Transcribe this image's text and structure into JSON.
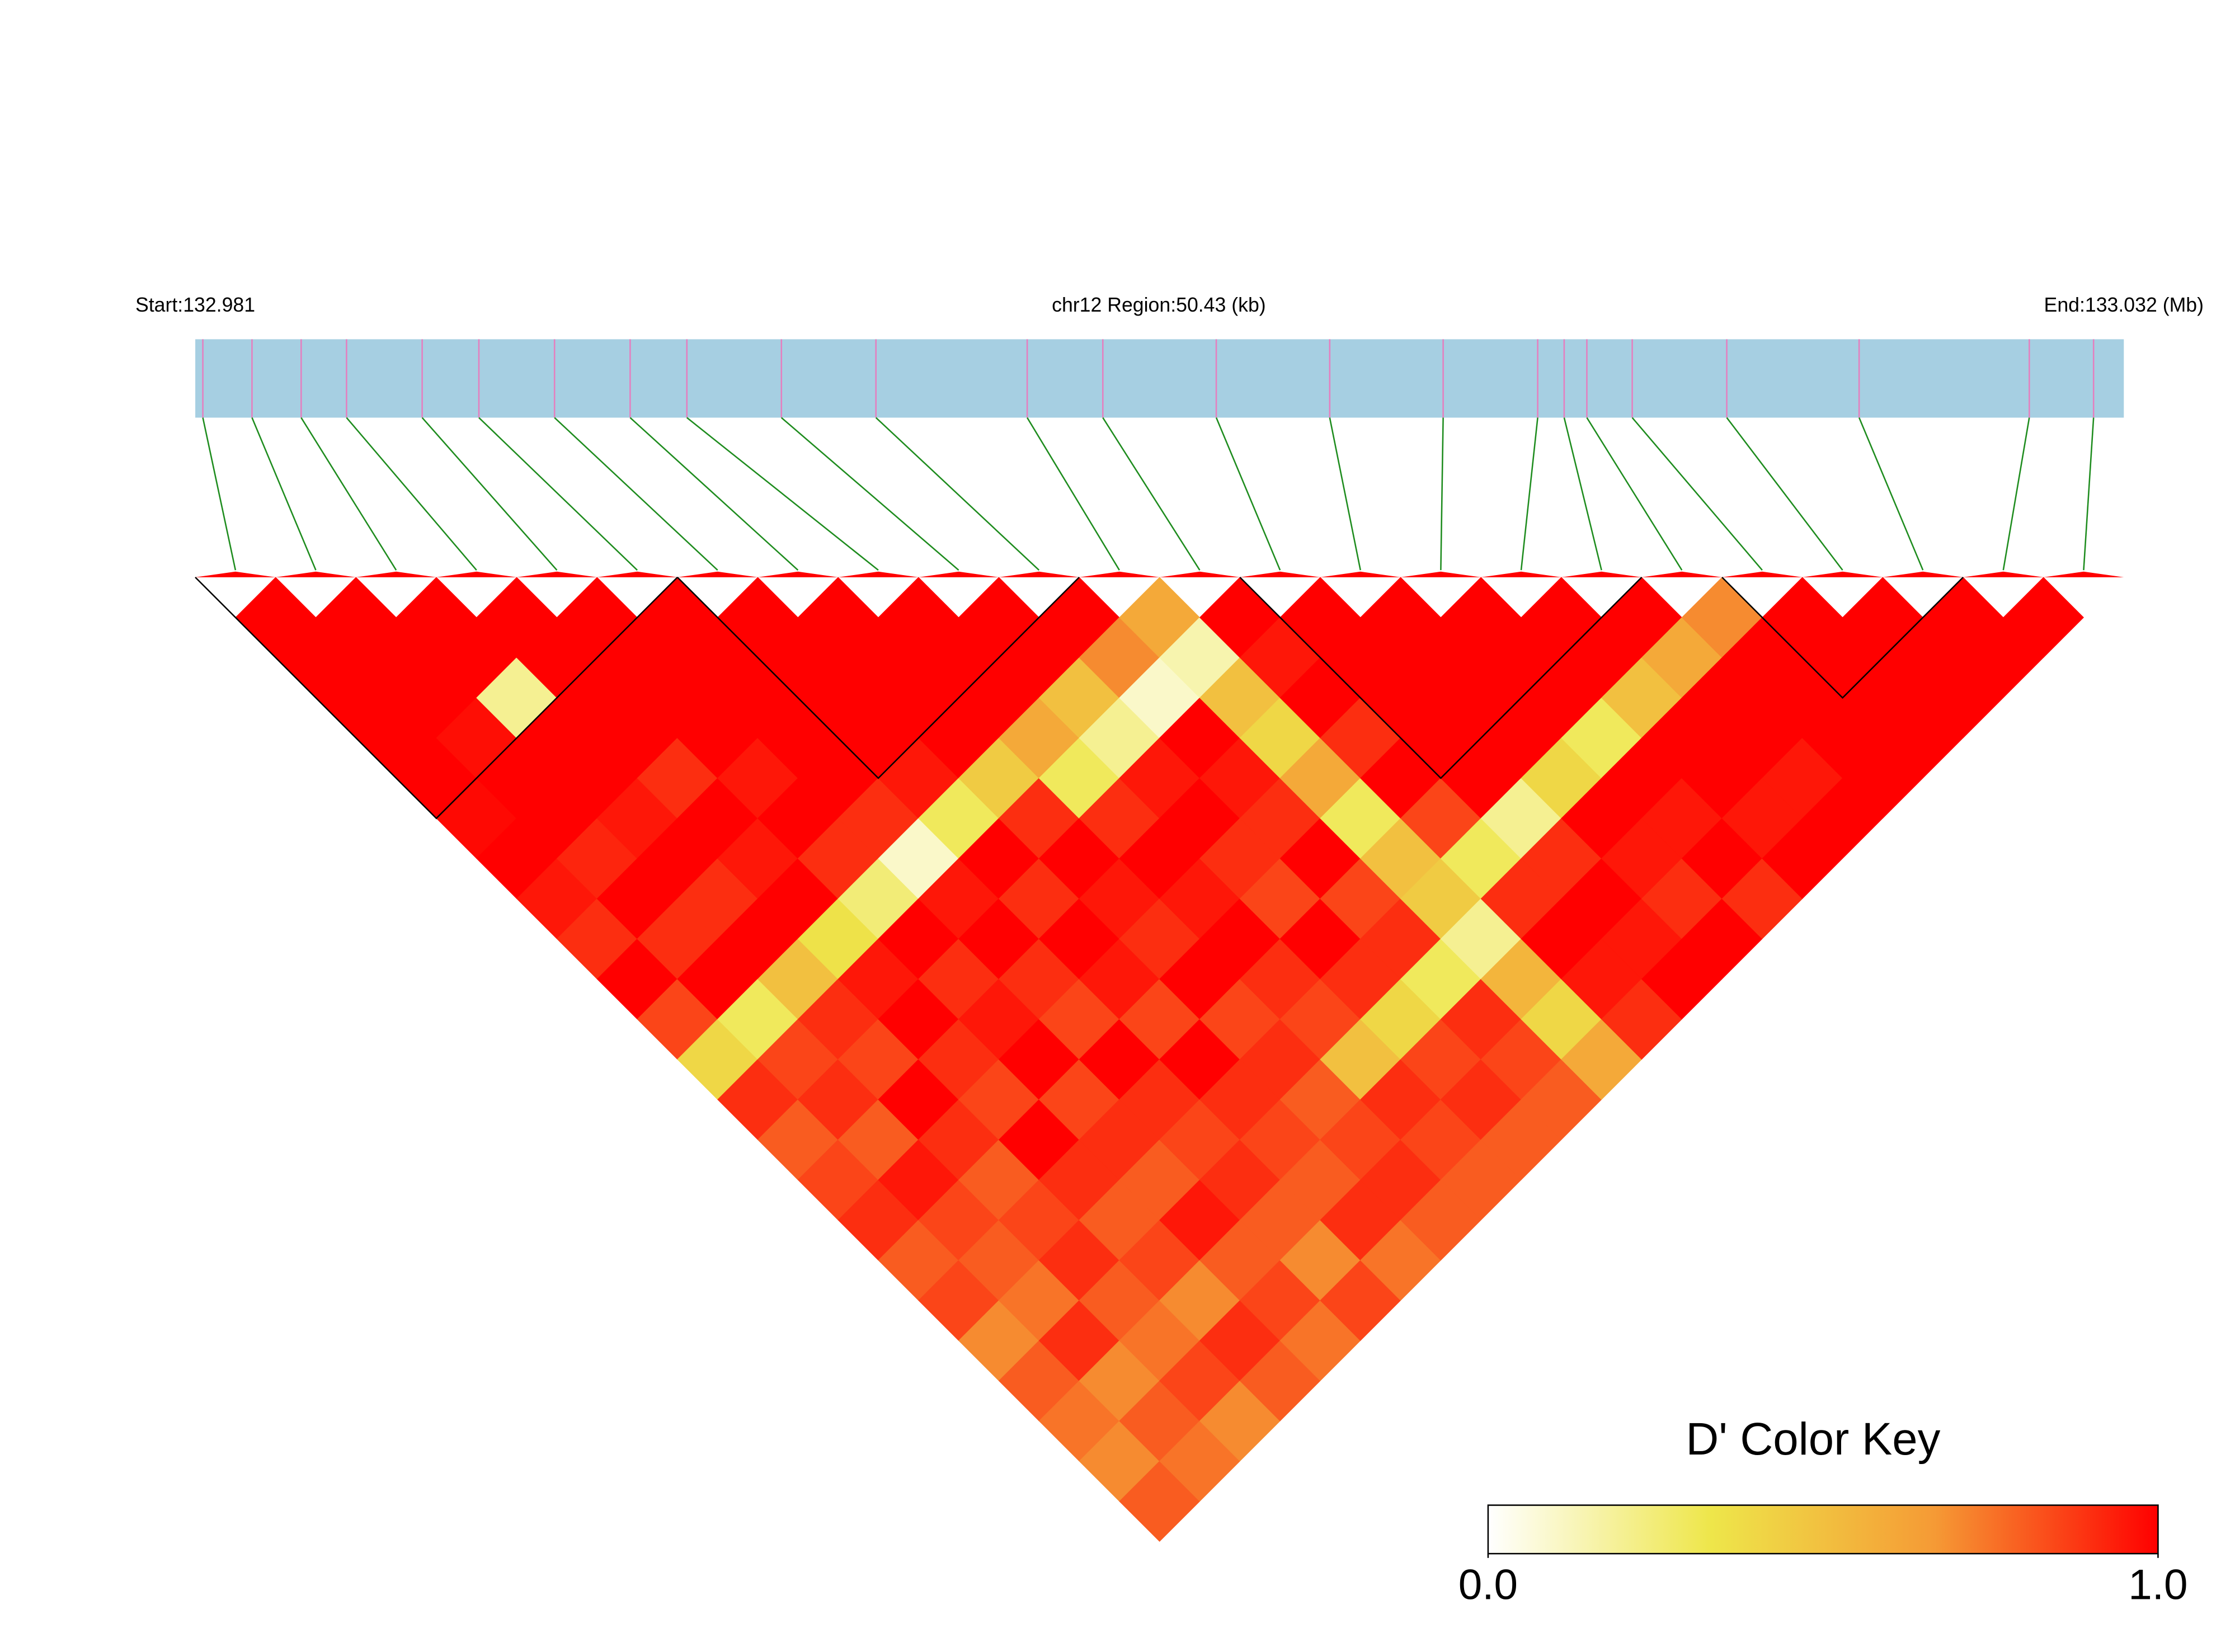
{
  "chart_data": {
    "type": "heatmap",
    "start_label": "Start:132.981",
    "region_label": "chr12 Region:50.43 (kb)",
    "end_label": "End:133.032 (Mb)",
    "xlim": [
      132.981,
      133.032
    ],
    "x": [
      132.9812,
      132.9825,
      132.9838,
      132.985,
      132.987,
      132.9885,
      132.9905,
      132.9925,
      132.994,
      132.9965,
      132.999,
      133.003,
      133.005,
      133.008,
      133.011,
      133.014,
      133.0165,
      133.0172,
      133.0178,
      133.019,
      133.0215,
      133.025,
      133.0295,
      133.0312
    ],
    "values": [
      [
        1,
        1,
        1,
        1,
        1,
        0.98,
        1,
        0.95,
        0.9,
        1,
        0.85,
        0.4,
        0.9,
        0.8,
        0.85,
        0.9,
        0.8,
        0.85,
        0.7,
        0.8,
        0.75,
        0.7,
        0.8
      ],
      [
        1,
        1,
        1,
        0.97,
        1,
        1,
        0.92,
        1,
        0.9,
        1,
        0.3,
        0.85,
        0.9,
        0.8,
        0.95,
        0.85,
        0.8,
        0.75,
        0.9,
        0.7,
        0.8,
        0.75
      ],
      [
        1,
        1,
        0.2,
        1,
        1,
        0.95,
        1,
        0.9,
        1,
        0.5,
        0.9,
        0.85,
        1,
        0.9,
        0.8,
        0.85,
        0.9,
        0.8,
        0.75,
        0.85,
        0.7
      ],
      [
        1,
        1,
        1,
        1,
        0.9,
        1,
        0.95,
        1,
        0.35,
        0.95,
        1,
        0.9,
        0.85,
        1,
        0.9,
        0.8,
        0.85,
        0.7,
        0.9,
        0.8
      ],
      [
        1,
        1,
        1,
        1,
        0.95,
        1,
        0.9,
        0.25,
        1,
        0.9,
        0.95,
        1,
        0.85,
        0.9,
        0.8,
        0.95,
        0.8,
        0.85,
        0.75
      ],
      [
        1,
        1,
        1,
        1,
        1,
        0.9,
        0.1,
        0.95,
        1,
        0.9,
        0.85,
        1,
        0.9,
        0.85,
        0.9,
        0.8,
        0.7,
        0.85
      ],
      [
        1,
        1,
        1,
        1,
        0.95,
        0.3,
        1,
        0.9,
        1,
        0.95,
        0.85,
        1,
        0.9,
        0.85,
        0.8,
        0.9,
        0.75
      ],
      [
        1,
        1,
        1,
        1,
        0.45,
        0.9,
        1,
        0.95,
        0.9,
        1,
        0.85,
        0.9,
        0.8,
        0.85,
        0.9,
        0.8
      ],
      [
        1,
        1,
        1,
        0.6,
        0.3,
        0.9,
        1,
        0.95,
        1,
        0.9,
        0.85,
        0.5,
        0.9,
        0.85,
        0.8
      ],
      [
        1,
        1,
        0.5,
        0.2,
        0.95,
        1,
        0.9,
        0.85,
        1,
        0.9,
        0.4,
        0.85,
        0.9,
        0.8
      ],
      [
        1,
        0.7,
        0.1,
        1,
        0.95,
        0.9,
        1,
        0.85,
        0.9,
        0.3,
        0.9,
        0.85,
        0.8
      ],
      [
        0.6,
        0.15,
        0.5,
        0.4,
        0.6,
        0.3,
        0.5,
        0.45,
        0.2,
        0.55,
        0.4,
        0.6
      ],
      [
        1,
        0.95,
        1,
        0.9,
        1,
        0.85,
        0.3,
        0.9,
        1,
        0.95,
        0.9
      ],
      [
        1,
        1,
        1,
        1,
        1,
        0.2,
        0.9,
        1,
        0.95,
        1
      ],
      [
        1,
        1,
        1,
        1,
        0.4,
        1,
        0.95,
        0.9,
        1
      ],
      [
        1,
        1,
        1,
        0.3,
        1,
        0.95,
        1,
        0.9
      ],
      [
        1,
        1,
        0.5,
        1,
        1,
        0.95,
        1
      ],
      [
        1,
        0.6,
        1,
        1,
        0.95,
        1
      ],
      [
        0.7,
        1,
        1,
        1,
        1
      ],
      [
        1,
        1,
        1,
        1
      ],
      [
        1,
        1,
        1
      ],
      [
        1,
        1
      ],
      [
        1
      ]
    ],
    "blocks": [
      [
        0,
        5
      ],
      [
        6,
        10
      ],
      [
        13,
        17
      ],
      [
        19,
        21
      ]
    ],
    "track_color": "#a6cfe2",
    "snp_color": "#e57fbf",
    "connector_color": "#1e8c1e",
    "colorbar_title": "D' Color Key",
    "colors": [
      "#ffffff",
      "#eee64a",
      "#f59a35",
      "#ff0000"
    ],
    "clim": [
      0,
      1
    ],
    "cticks": [
      {
        "value": 0,
        "label": "0.0"
      },
      {
        "value": 1,
        "label": "1.0"
      }
    ]
  }
}
